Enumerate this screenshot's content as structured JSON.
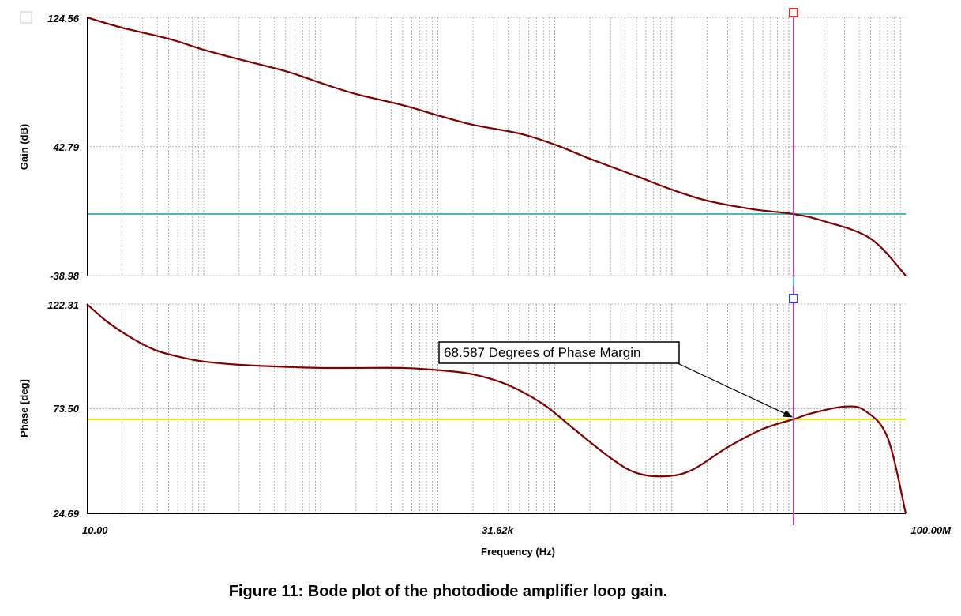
{
  "caption": "Figure 11: Bode plot of the photodiode amplifier loop gain.",
  "colors": {
    "trace": "#800000",
    "gain_reference": "#40c0c0",
    "phase_reference": "#e0e000",
    "cursor": "#c040c0",
    "grid": "#a0a0a0",
    "cursor_marker_gain": "#e03030",
    "cursor_marker_phase": "#3040c0"
  },
  "chart_data": [
    {
      "type": "line",
      "panel": "gain",
      "ylabel": "Gain (dB)",
      "xlabel": "",
      "xscale": "log",
      "xlim": [
        10,
        100000000
      ],
      "ylim": [
        -38.98,
        124.56
      ],
      "ytick_labels": [
        "124.56",
        "42.79",
        "-38.98"
      ],
      "ytick_values": [
        124.56,
        42.79,
        -38.98
      ],
      "reference_line": 0,
      "cursor_x": 11000000,
      "series": [
        {
          "x": [
            10,
            20,
            50,
            100,
            200,
            500,
            1000,
            2000,
            5000,
            10000,
            20000,
            50000,
            100000,
            200000,
            500000,
            1000000,
            2000000,
            5000000,
            11000000,
            20000000,
            50000000,
            100000000
          ],
          "y": [
            124.56,
            118,
            111,
            104,
            98,
            90.5,
            83,
            76,
            69,
            62.5,
            56.5,
            51,
            44,
            35,
            24,
            15.5,
            8.5,
            3,
            0,
            -4.5,
            -15.5,
            -38.98
          ]
        }
      ]
    },
    {
      "type": "line",
      "panel": "phase",
      "ylabel": "Phase [deg]",
      "xlabel": "Frequency (Hz)",
      "xscale": "log",
      "xlim": [
        10,
        100000000
      ],
      "xtick_labels": [
        "10.00",
        "31.62k",
        "100.00M"
      ],
      "xtick_values": [
        10,
        31620,
        100000000
      ],
      "ylim": [
        24.69,
        122.31
      ],
      "ytick_labels": [
        "122.31",
        "73.50",
        "24.69"
      ],
      "ytick_values": [
        122.31,
        73.5,
        24.69
      ],
      "reference_line": 68.587,
      "cursor_x": 11000000,
      "annotation": "68.587 Degrees of Phase Margin",
      "series": [
        {
          "x": [
            10,
            15,
            25,
            40,
            70,
            100,
            200,
            500,
            1000,
            2000,
            5000,
            10000,
            20000,
            40000,
            80000,
            150000,
            300000,
            500000,
            900000,
            1500000,
            3000000,
            6000000,
            11000000,
            16000000,
            30000000,
            45000000,
            70000000,
            100000000
          ],
          "y": [
            122.31,
            114,
            106,
            100.5,
            97,
            95.5,
            94,
            93,
            92.5,
            92.5,
            92.5,
            91.5,
            89.5,
            84.5,
            75.5,
            63.5,
            50.5,
            43.5,
            42,
            45,
            55.5,
            64,
            68.587,
            71.5,
            74.5,
            72.5,
            60,
            24.69
          ]
        }
      ]
    }
  ]
}
